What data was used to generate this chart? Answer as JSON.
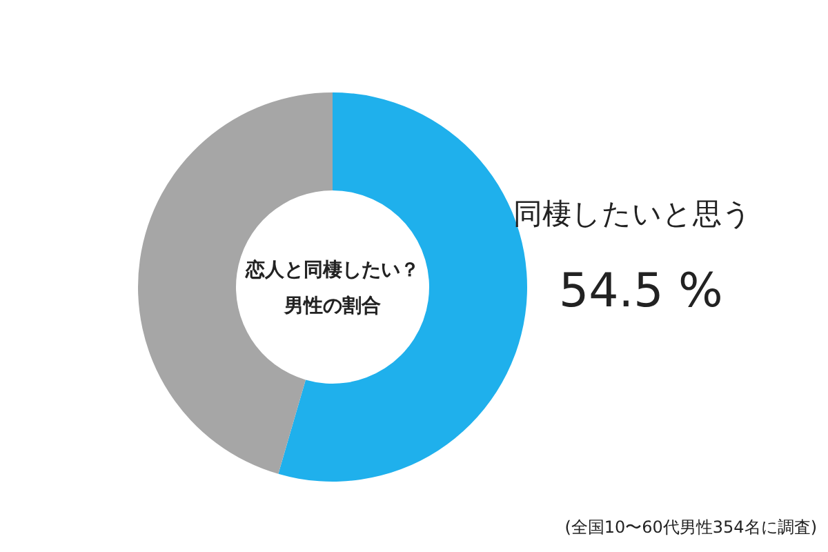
{
  "chart_data": {
    "type": "donut",
    "title": "恋人と同棲したい？",
    "subtitle": "男性の割合",
    "categories": [
      "同棲したいと思う",
      null
    ],
    "values": [
      54.5,
      45.5
    ],
    "colors": [
      "#1fb0ec",
      "#a6a6a6"
    ],
    "value_labels": [
      "54.5 %",
      null
    ],
    "annotations": [
      "(全国10〜60代男性354名に調査)"
    ]
  }
}
